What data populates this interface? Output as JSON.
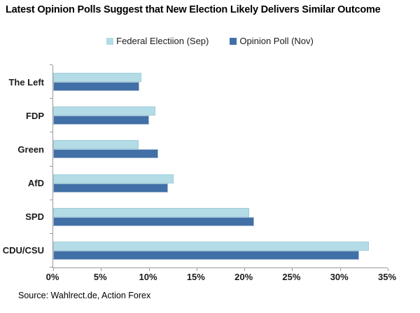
{
  "title": "Latest Opinion Polls Suggest that New Election Likely Delivers Similar Outcome",
  "source": "Source: Wahlrect.de, Action Forex",
  "legend": [
    {
      "label": "Federal Electiion (Sep)",
      "color": "#b3dce6"
    },
    {
      "label": "Opinion Poll (Nov)",
      "color": "#4170a6"
    }
  ],
  "chart_data": {
    "type": "bar",
    "orientation": "horizontal",
    "title": "Latest Opinion Polls Suggest that New Election Likely Delivers Similar Outcome",
    "categories": [
      "The Left",
      "FDP",
      "Green",
      "AfD",
      "SPD",
      "CDU/CSU"
    ],
    "series": [
      {
        "name": "Federal Electiion (Sep)",
        "color": "#b3dce6",
        "values": [
          9.2,
          10.7,
          8.9,
          12.6,
          20.5,
          33
        ]
      },
      {
        "name": "Opinion Poll (Nov)",
        "color": "#4170a6",
        "values": [
          9,
          10,
          11,
          12,
          21,
          32
        ]
      }
    ],
    "x_ticks": [
      "0%",
      "5%",
      "10%",
      "15%",
      "20%",
      "25%",
      "30%",
      "35%"
    ],
    "xlim": [
      0,
      35
    ],
    "xlabel": "",
    "ylabel": "",
    "grid": false,
    "legend_position": "top",
    "axis_color": "#9a9a9a"
  }
}
